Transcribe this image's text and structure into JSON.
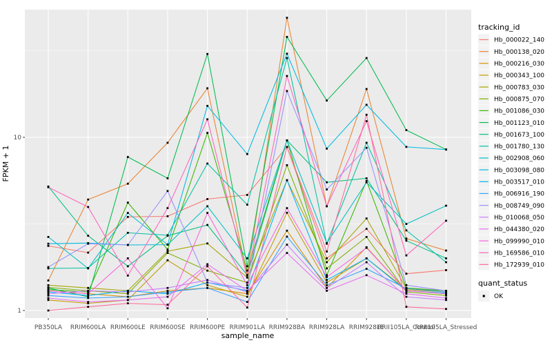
{
  "chart_data": {
    "type": "line",
    "title": "",
    "xlabel": "sample_name",
    "ylabel": "FPKM + 1",
    "y_scale": "log10",
    "y_tick_labels": [
      "1",
      "10"
    ],
    "y_tick_values": [
      1,
      10
    ],
    "y_minor_tick_values": [
      3.1623,
      31.623
    ],
    "ylim": [
      0.9,
      55
    ],
    "grid": true,
    "legend_position": "right",
    "legend_title": "tracking_id",
    "quant_legend": {
      "title": "quant_status",
      "items": [
        {
          "label": "OK",
          "marker": "black-square"
        }
      ]
    },
    "panel_color": "#EBEBEB",
    "grid_color": "#FFFFFF",
    "point_color": "#000000",
    "axis_text_color": "#4D4D4D",
    "legend_key_color": "#F2F2F2",
    "categories": [
      "PB350LA",
      "RRIM600LA",
      "RRIM600LE",
      "RRIM600SE",
      "RRIM600PE",
      "RRIM901LA",
      "RRIM928BA",
      "RRIM928LA",
      "RRIM928LE",
      "RRII105LA_Control",
      "RRII105LA_Stressed"
    ],
    "series": [
      {
        "name": "Hb_000022_140",
        "color": "#F8766D",
        "values": [
          2.36,
          2.16,
          3.47,
          3.5,
          4.4,
          4.65,
          8.8,
          2.0,
          2.96,
          1.63,
          1.71
        ]
      },
      {
        "name": "Hb_000138_020",
        "color": "#EA8331",
        "values": [
          1.49,
          4.37,
          5.4,
          9.3,
          19.2,
          1.6,
          49.0,
          4.0,
          19.0,
          2.6,
          2.22
        ]
      },
      {
        "name": "Hb_000216_030",
        "color": "#D89000",
        "values": [
          1.3,
          1.25,
          1.2,
          1.3,
          1.35,
          1.25,
          2.89,
          1.35,
          2.32,
          1.3,
          1.25
        ]
      },
      {
        "name": "Hb_000343_100",
        "color": "#C09B00",
        "values": [
          1.15,
          1.1,
          1.15,
          1.95,
          1.4,
          1.2,
          3.67,
          1.45,
          2.0,
          1.32,
          1.28
        ]
      },
      {
        "name": "Hb_000783_030",
        "color": "#A3A500",
        "values": [
          1.4,
          1.35,
          1.3,
          2.2,
          2.44,
          1.55,
          5.65,
          1.9,
          3.4,
          1.34,
          1.3
        ]
      },
      {
        "name": "Hb_000875_070",
        "color": "#7CAE00",
        "values": [
          1.36,
          1.3,
          1.25,
          2.15,
          1.7,
          1.45,
          6.9,
          1.75,
          2.66,
          1.28,
          1.22
        ]
      },
      {
        "name": "Hb_001086_030",
        "color": "#39B600",
        "values": [
          1.32,
          1.28,
          4.2,
          2.25,
          10.6,
          1.7,
          9.6,
          1.6,
          5.6,
          1.35,
          1.3
        ]
      },
      {
        "name": "Hb_001123_010",
        "color": "#00BB4E",
        "values": [
          1.35,
          1.2,
          7.7,
          5.8,
          30.3,
          1.8,
          38.0,
          16.3,
          28.7,
          11.0,
          8.5
        ]
      },
      {
        "name": "Hb_001673_100",
        "color": "#00BF7D",
        "values": [
          5.2,
          2.7,
          1.8,
          2.7,
          3.12,
          1.6,
          9.6,
          5.5,
          5.8,
          2.53,
          2.0
        ]
      },
      {
        "name": "Hb_001780_130",
        "color": "#00C1A3",
        "values": [
          1.75,
          1.76,
          2.81,
          2.72,
          7.06,
          4.08,
          28.7,
          2.43,
          9.3,
          2.9,
          1.9
        ]
      },
      {
        "name": "Hb_002908_060",
        "color": "#00BFC4",
        "values": [
          2.66,
          1.75,
          3.66,
          2.4,
          4.0,
          2.0,
          9.6,
          2.45,
          5.5,
          3.16,
          4.03
        ]
      },
      {
        "name": "Hb_003098_080",
        "color": "#00BAE0",
        "values": [
          2.43,
          2.45,
          2.39,
          2.4,
          15.2,
          8.0,
          30.4,
          8.6,
          15.4,
          8.8,
          8.5
        ]
      },
      {
        "name": "Hb_003517_010",
        "color": "#00B0F6",
        "values": [
          1.28,
          1.22,
          1.3,
          1.25,
          1.45,
          1.3,
          5.65,
          1.5,
          2.0,
          1.3,
          1.26
        ]
      },
      {
        "name": "Hb_006916_190",
        "color": "#35A2FF",
        "values": [
          1.22,
          1.18,
          1.2,
          1.28,
          1.35,
          1.12,
          2.67,
          1.4,
          1.74,
          1.34,
          1.28
        ]
      },
      {
        "name": "Hb_008749_090",
        "color": "#9590FF",
        "values": [
          1.78,
          2.43,
          2.39,
          4.9,
          1.45,
          1.35,
          18.5,
          5.0,
          8.7,
          1.4,
          1.3
        ]
      },
      {
        "name": "Hb_010068_050",
        "color": "#C77CFF",
        "values": [
          1.25,
          1.3,
          1.28,
          1.35,
          1.5,
          1.28,
          2.4,
          1.35,
          1.9,
          1.2,
          1.15
        ]
      },
      {
        "name": "Hb_044380_020",
        "color": "#E76BF3",
        "values": [
          1.18,
          1.12,
          1.15,
          1.2,
          1.85,
          1.3,
          2.15,
          1.3,
          1.6,
          1.25,
          1.18
        ]
      },
      {
        "name": "Hb_099990_010",
        "color": "#FA62DB",
        "values": [
          1.3,
          1.25,
          2.0,
          1.03,
          3.66,
          1.4,
          3.9,
          1.56,
          2.3,
          1.3,
          1.25
        ]
      },
      {
        "name": "Hb_169586_010",
        "color": "#FF62BC",
        "values": [
          5.15,
          3.96,
          1.59,
          3.9,
          12.7,
          1.55,
          22.6,
          4.0,
          12.4,
          2.08,
          3.3
        ]
      },
      {
        "name": "Hb_172939_010",
        "color": "#FF6A98",
        "values": [
          1.0,
          1.05,
          1.1,
          1.08,
          1.8,
          1.04,
          8.8,
          2.19,
          13.5,
          1.05,
          1.02
        ]
      }
    ]
  }
}
